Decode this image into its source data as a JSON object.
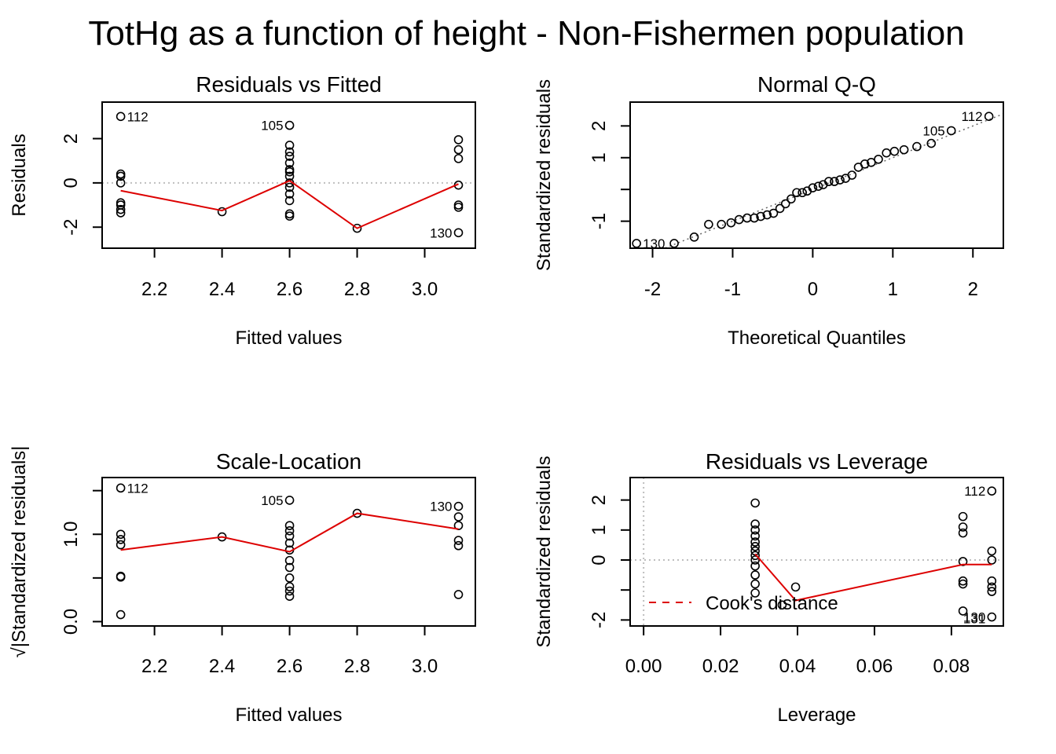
{
  "title": "TotHg as a function of height - Non-Fishermen population",
  "colors": {
    "smoother": "#dd0000",
    "reference": "#bebebe",
    "qqline": "#666666",
    "points": "#000000"
  },
  "chart_data": [
    {
      "id": "rvf",
      "type": "scatter",
      "title": "Residuals vs Fitted",
      "xlabel": "Fitted values",
      "ylabel": "Residuals",
      "xlim": [
        2.045,
        3.15
      ],
      "ylim": [
        -2.95,
        3.65
      ],
      "xticks": [
        2.2,
        2.4,
        2.6,
        2.8,
        3.0
      ],
      "xtick_labels": [
        "2.2",
        "2.4",
        "2.6",
        "2.8",
        "3.0"
      ],
      "yticks": [
        -2,
        0,
        2
      ],
      "ytick_labels": [
        "-2",
        "0",
        "2"
      ],
      "hline": 0,
      "points": [
        [
          2.1,
          3.0
        ],
        [
          2.1,
          0.4
        ],
        [
          2.1,
          0.3
        ],
        [
          2.1,
          0.0
        ],
        [
          2.1,
          -0.9
        ],
        [
          2.1,
          -1.0
        ],
        [
          2.1,
          -1.2
        ],
        [
          2.1,
          -1.35
        ],
        [
          2.4,
          -1.3
        ],
        [
          2.6,
          2.6
        ],
        [
          2.6,
          1.7
        ],
        [
          2.6,
          1.4
        ],
        [
          2.6,
          1.2
        ],
        [
          2.6,
          0.9
        ],
        [
          2.6,
          0.6
        ],
        [
          2.6,
          0.5
        ],
        [
          2.6,
          0.3
        ],
        [
          2.6,
          0.0
        ],
        [
          2.6,
          -0.2
        ],
        [
          2.6,
          -0.5
        ],
        [
          2.6,
          -0.8
        ],
        [
          2.6,
          -1.4
        ],
        [
          2.6,
          -1.5
        ],
        [
          2.8,
          -2.05
        ],
        [
          3.1,
          1.95
        ],
        [
          3.1,
          1.5
        ],
        [
          3.1,
          1.1
        ],
        [
          3.1,
          -0.1
        ],
        [
          3.1,
          -1.0
        ],
        [
          3.1,
          -1.1
        ],
        [
          3.1,
          -2.25
        ]
      ],
      "smoother": [
        [
          2.1,
          -0.35
        ],
        [
          2.4,
          -1.25
        ],
        [
          2.6,
          0.1
        ],
        [
          2.8,
          -2.05
        ],
        [
          3.1,
          -0.05
        ]
      ],
      "labels": [
        {
          "text": "112",
          "x": 2.1,
          "y": 3.0,
          "side": "right"
        },
        {
          "text": "105",
          "x": 2.6,
          "y": 2.6,
          "side": "left"
        },
        {
          "text": "130",
          "x": 3.1,
          "y": -2.25,
          "side": "left"
        }
      ]
    },
    {
      "id": "qq",
      "type": "scatter",
      "title": "Normal Q-Q",
      "xlabel": "Theoretical Quantiles",
      "ylabel": "Standardized residuals",
      "xlim": [
        -2.28,
        2.38
      ],
      "ylim": [
        -1.85,
        2.75
      ],
      "xticks": [
        -2,
        -1,
        0,
        1,
        2
      ],
      "xtick_labels": [
        "-2",
        "-1",
        "0",
        "1",
        "2"
      ],
      "yticks": [
        -1,
        0,
        1,
        2
      ],
      "ytick_labels": [
        "-1",
        "",
        "1",
        "2"
      ],
      "refline": [
        [
          -2.28,
          -2.28
        ],
        [
          2.38,
          2.38
        ]
      ],
      "points": [
        [
          -2.2,
          -1.7
        ],
        [
          -1.73,
          -1.7
        ],
        [
          -1.48,
          -1.5
        ],
        [
          -1.3,
          -1.1
        ],
        [
          -1.14,
          -1.1
        ],
        [
          -1.02,
          -1.05
        ],
        [
          -0.92,
          -0.95
        ],
        [
          -0.82,
          -0.9
        ],
        [
          -0.73,
          -0.9
        ],
        [
          -0.65,
          -0.85
        ],
        [
          -0.57,
          -0.8
        ],
        [
          -0.49,
          -0.75
        ],
        [
          -0.41,
          -0.6
        ],
        [
          -0.34,
          -0.45
        ],
        [
          -0.27,
          -0.3
        ],
        [
          -0.2,
          -0.1
        ],
        [
          -0.13,
          -0.1
        ],
        [
          -0.07,
          -0.05
        ],
        [
          0.0,
          0.05
        ],
        [
          0.07,
          0.1
        ],
        [
          0.13,
          0.15
        ],
        [
          0.2,
          0.25
        ],
        [
          0.27,
          0.25
        ],
        [
          0.34,
          0.3
        ],
        [
          0.41,
          0.35
        ],
        [
          0.49,
          0.45
        ],
        [
          0.57,
          0.7
        ],
        [
          0.65,
          0.8
        ],
        [
          0.73,
          0.85
        ],
        [
          0.82,
          0.95
        ],
        [
          0.92,
          1.15
        ],
        [
          1.02,
          1.2
        ],
        [
          1.14,
          1.25
        ],
        [
          1.3,
          1.35
        ],
        [
          1.48,
          1.45
        ],
        [
          1.73,
          1.85
        ],
        [
          2.2,
          2.3
        ]
      ],
      "labels": [
        {
          "text": "112",
          "x": 2.2,
          "y": 2.3,
          "side": "left"
        },
        {
          "text": "105",
          "x": 1.73,
          "y": 1.85,
          "side": "left"
        },
        {
          "text": "130",
          "x": -2.2,
          "y": -1.7,
          "side": "right"
        }
      ]
    },
    {
      "id": "sl",
      "type": "scatter",
      "title": "Scale-Location",
      "xlabel": "Fitted values",
      "ylabel": "√|Standardized residuals|",
      "xlim": [
        2.045,
        3.15
      ],
      "ylim": [
        -0.05,
        1.65
      ],
      "xticks": [
        2.2,
        2.4,
        2.6,
        2.8,
        3.0
      ],
      "xtick_labels": [
        "2.2",
        "2.4",
        "2.6",
        "2.8",
        "3.0"
      ],
      "yticks": [
        0.0,
        0.5,
        1.0,
        1.5
      ],
      "ytick_labels": [
        "0.0",
        "",
        "1.0",
        ""
      ],
      "points": [
        [
          2.1,
          1.53
        ],
        [
          2.1,
          1.0
        ],
        [
          2.1,
          0.94
        ],
        [
          2.1,
          0.88
        ],
        [
          2.1,
          0.52
        ],
        [
          2.1,
          0.51
        ],
        [
          2.1,
          0.08
        ],
        [
          2.4,
          0.97
        ],
        [
          2.6,
          1.39
        ],
        [
          2.6,
          1.1
        ],
        [
          2.6,
          1.04
        ],
        [
          2.6,
          0.98
        ],
        [
          2.6,
          0.9
        ],
        [
          2.6,
          0.82
        ],
        [
          2.6,
          0.7
        ],
        [
          2.6,
          0.62
        ],
        [
          2.6,
          0.5
        ],
        [
          2.6,
          0.4
        ],
        [
          2.6,
          0.35
        ],
        [
          2.6,
          0.29
        ],
        [
          2.8,
          1.24
        ],
        [
          3.1,
          1.32
        ],
        [
          3.1,
          1.2
        ],
        [
          3.1,
          1.1
        ],
        [
          3.1,
          0.93
        ],
        [
          3.1,
          0.87
        ],
        [
          3.1,
          0.31
        ]
      ],
      "smoother": [
        [
          2.1,
          0.82
        ],
        [
          2.4,
          0.97
        ],
        [
          2.6,
          0.8
        ],
        [
          2.8,
          1.24
        ],
        [
          3.1,
          1.06
        ]
      ],
      "labels": [
        {
          "text": "112",
          "x": 2.1,
          "y": 1.53,
          "side": "right"
        },
        {
          "text": "105",
          "x": 2.6,
          "y": 1.39,
          "side": "left"
        },
        {
          "text": "130",
          "x": 3.1,
          "y": 1.32,
          "side": "left"
        }
      ]
    },
    {
      "id": "rvl",
      "type": "scatter",
      "title": "Residuals vs Leverage",
      "xlabel": "Leverage",
      "ylabel": "Standardized residuals",
      "xlim": [
        -0.0035,
        0.0935
      ],
      "ylim": [
        -2.2,
        2.75
      ],
      "xticks": [
        0.0,
        0.02,
        0.04,
        0.06,
        0.08
      ],
      "xtick_labels": [
        "0.00",
        "0.02",
        "0.04",
        "0.06",
        "0.08"
      ],
      "yticks": [
        -2,
        -1,
        0,
        1,
        2
      ],
      "ytick_labels": [
        "-2",
        "",
        "0",
        "1",
        "2"
      ],
      "hline": 0,
      "vline": 0,
      "points": [
        [
          0.029,
          1.9
        ],
        [
          0.029,
          1.2
        ],
        [
          0.029,
          1.0
        ],
        [
          0.029,
          0.8
        ],
        [
          0.029,
          0.6
        ],
        [
          0.029,
          0.45
        ],
        [
          0.029,
          0.3
        ],
        [
          0.029,
          0.15
        ],
        [
          0.029,
          0.0
        ],
        [
          0.029,
          -0.2
        ],
        [
          0.029,
          -0.5
        ],
        [
          0.029,
          -0.8
        ],
        [
          0.029,
          -1.1
        ],
        [
          0.036,
          -1.5
        ],
        [
          0.0395,
          -0.9
        ],
        [
          0.083,
          1.45
        ],
        [
          0.083,
          1.1
        ],
        [
          0.083,
          0.9
        ],
        [
          0.083,
          -0.05
        ],
        [
          0.083,
          -0.7
        ],
        [
          0.083,
          -0.8
        ],
        [
          0.083,
          -1.7
        ],
        [
          0.0905,
          2.3
        ],
        [
          0.0905,
          0.3
        ],
        [
          0.0905,
          0.0
        ],
        [
          0.0905,
          -0.7
        ],
        [
          0.0905,
          -0.9
        ],
        [
          0.0905,
          -1.05
        ],
        [
          0.0905,
          -1.9
        ]
      ],
      "smoother": [
        [
          0.029,
          0.2
        ],
        [
          0.0395,
          -1.35
        ],
        [
          0.083,
          -0.15
        ],
        [
          0.0905,
          -0.15
        ]
      ],
      "labels": [
        {
          "text": "112",
          "x": 0.0905,
          "y": 2.3,
          "side": "left"
        },
        {
          "text": "130",
          "x": 0.0905,
          "y": -1.9,
          "side": "left"
        },
        {
          "text": "131",
          "x": 0.0905,
          "y": -1.95,
          "side": "left"
        }
      ],
      "legend": {
        "text": "Cook's distance",
        "color": "#dd0000",
        "style": "dashed",
        "position": "bottom-left"
      }
    }
  ]
}
